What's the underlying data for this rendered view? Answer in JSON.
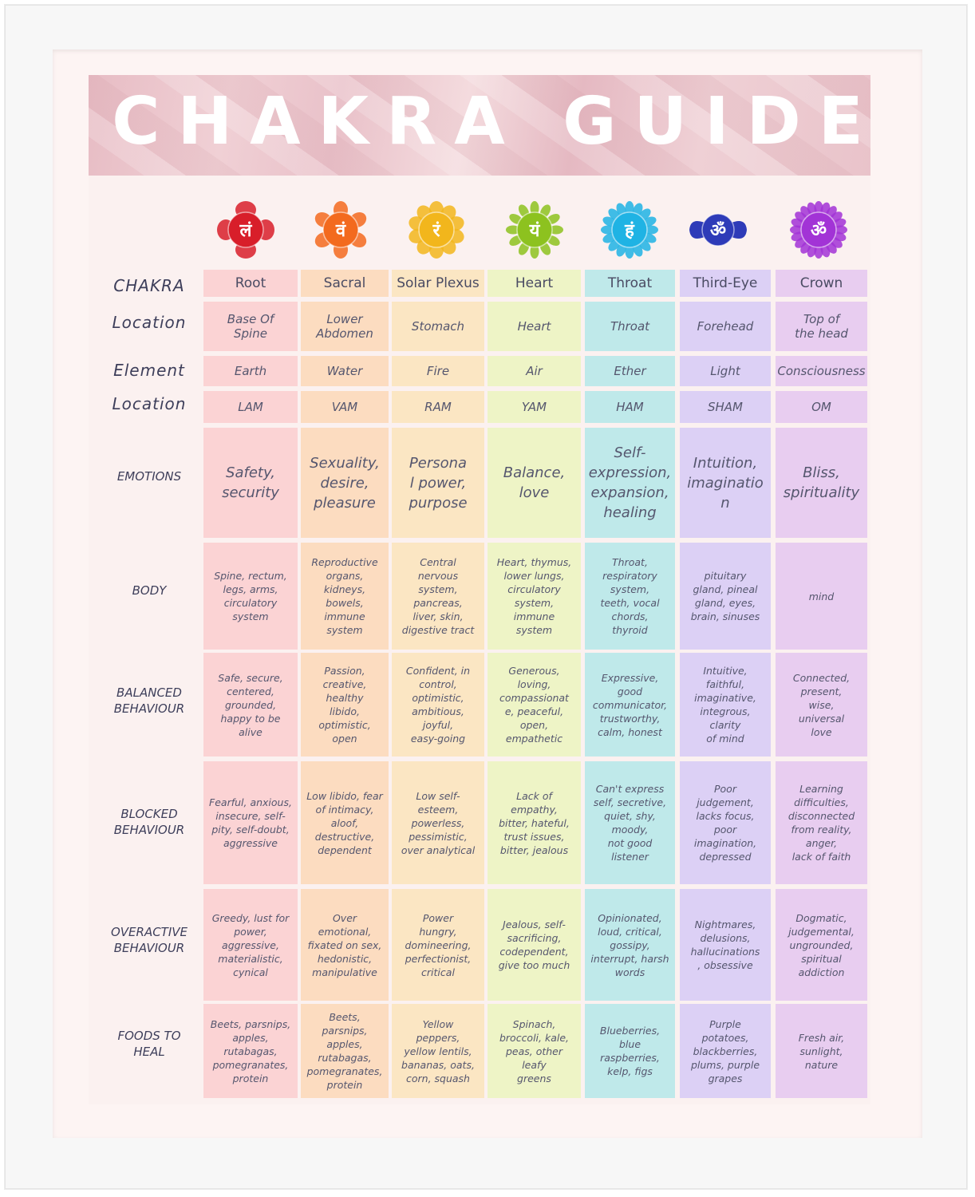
{
  "title": "CHAKRA GUIDE",
  "symbols": [
    {
      "glyph": "लं",
      "color": "#d81e2a",
      "shape": "lotus4-icon"
    },
    {
      "glyph": "वं",
      "color": "#f36a1e",
      "shape": "lotus6-icon"
    },
    {
      "glyph": "रं",
      "color": "#f2b61c",
      "shape": "lotus10-icon"
    },
    {
      "glyph": "यं",
      "color": "#8dc21f",
      "shape": "lotus12-icon"
    },
    {
      "glyph": "हं",
      "color": "#1fb3e4",
      "shape": "lotus16-icon"
    },
    {
      "glyph": "ॐ",
      "color": "#2e3bb8",
      "shape": "lotus2-icon"
    },
    {
      "glyph": "ॐ",
      "color": "#a233d6",
      "shape": "lotus1000-icon"
    }
  ],
  "row_labels": [
    "CHAKRA",
    "Location",
    "Element",
    "Location",
    "EMOTIONS",
    "BODY",
    "BALANCED\nBEHAVIOUR",
    "BLOCKED\nBEHAVIOUR",
    "OVERACTIVE\nBEHAVIOUR",
    "FOODS TO\nHEAL"
  ],
  "chakras": [
    {
      "name": "Root",
      "location": "Base Of\nSpine",
      "element": "Earth",
      "mantra": "LAM",
      "emotions": "Safety,\nsecurity",
      "body": "Spine, rectum,\nlegs, arms,\ncirculatory\nsystem",
      "balanced": "Safe, secure,\ncentered,\ngrounded,\nhappy to be\nalive",
      "blocked": "Fearful, anxious,\ninsecure, self-\npity, self-doubt,\naggressive",
      "overactive": "Greedy, lust for\npower,\naggressive,\nmaterialistic,\ncynical",
      "foods": "Beets, parsnips,\napples,\nrutabagas,\npomegranates,\nprotein"
    },
    {
      "name": "Sacral",
      "location": "Lower\nAbdomen",
      "element": "Water",
      "mantra": "VAM",
      "emotions": "Sexuality,\ndesire,\npleasure",
      "body": "Reproductive\norgans,\nkidneys,\nbowels,\nimmune system",
      "balanced": "Passion,\ncreative, healthy\nlibido,\noptimistic, open",
      "blocked": "Low libido, fear\nof intimacy,\naloof,\ndestructive,\ndependent",
      "overactive": "Over\nemotional,\nfixated on sex,\nhedonistic,\nmanipulative",
      "foods": "Beets, parsnips,\napples,\nrutabagas,\npomegranates,\nprotein"
    },
    {
      "name": "Solar Plexus",
      "location": "Stomach",
      "element": "Fire",
      "mantra": "RAM",
      "emotions": "Persona\nl power,\npurpose",
      "body": "Central\nnervous\nsystem,\npancreas,\nliver, skin,\ndigestive tract",
      "balanced": "Confident, in\ncontrol,\noptimistic,\nambitious,\njoyful,\neasy-going",
      "blocked": "Low self-\nesteem,\npowerless,\npessimistic,\nover analytical",
      "overactive": "Power\nhungry,\ndomineering,\nperfectionist,\ncritical",
      "foods": "Yellow\npeppers,\nyellow lentils,\nbananas, oats,\ncorn, squash"
    },
    {
      "name": "Heart",
      "location": "Heart",
      "element": "Air",
      "mantra": "YAM",
      "emotions": "Balance,\nlove",
      "body": "Heart, thymus,\nlower lungs,\ncirculatory\nsystem,\nimmune\nsystem",
      "balanced": "Generous,\nloving,\ncompassionat\ne, peaceful,\nopen,\nempathetic",
      "blocked": "Lack of empathy,\nbitter, hateful,\ntrust issues,\nbitter, jealous",
      "overactive": "Jealous, self-\nsacrificing,\ncodependent,\ngive too much",
      "foods": "Spinach,\nbroccoli, kale,\npeas, other leafy\ngreens"
    },
    {
      "name": "Throat",
      "location": "Throat",
      "element": "Ether",
      "mantra": "HAM",
      "emotions": "Self-\nexpression,\nexpansion,\nhealing",
      "body": "Throat,\nrespiratory\nsystem,\nteeth, vocal\nchords,\nthyroid",
      "balanced": "Expressive,\ngood\ncommunicator,\ntrustworthy,\ncalm, honest",
      "blocked": "Can't express\nself, secretive,\nquiet, shy,\nmoody,\nnot good listener",
      "overactive": "Opinionated,\nloud, critical,\ngossipy,\ninterrupt, harsh\nwords",
      "foods": "Blueberries,\nblue\nraspberries,\nkelp, figs"
    },
    {
      "name": "Third-Eye",
      "location": "Forehead",
      "element": "Light",
      "mantra": "SHAM",
      "emotions": "Intuition,\nimaginatio\nn",
      "body": "pituitary\ngland, pineal\ngland, eyes,\nbrain, sinuses",
      "balanced": "Intuitive,\nfaithful,\nimaginative,\nintegrous,\nclarity\nof mind",
      "blocked": "Poor judgement,\nlacks focus,\npoor\nimagination,\ndepressed",
      "overactive": "Nightmares,\ndelusions,\nhallucinations\n, obsessive",
      "foods": "Purple\npotatoes,\nblackberries,\nplums, purple\ngrapes"
    },
    {
      "name": "Crown",
      "location": "Top of\nthe head",
      "element": "Consciousness",
      "mantra": "OM",
      "emotions": "Bliss,\nspirituality",
      "body": "mind",
      "balanced": "Connected,\npresent,\nwise,\nuniversal\nlove",
      "blocked": "Learning\ndifficulties,\ndisconnected\nfrom reality, anger,\nlack of faith",
      "overactive": "Dogmatic,\njudgemental,\nungrounded,\nspiritual\naddiction",
      "foods": "Fresh air,\nsunlight,\nnature"
    }
  ]
}
